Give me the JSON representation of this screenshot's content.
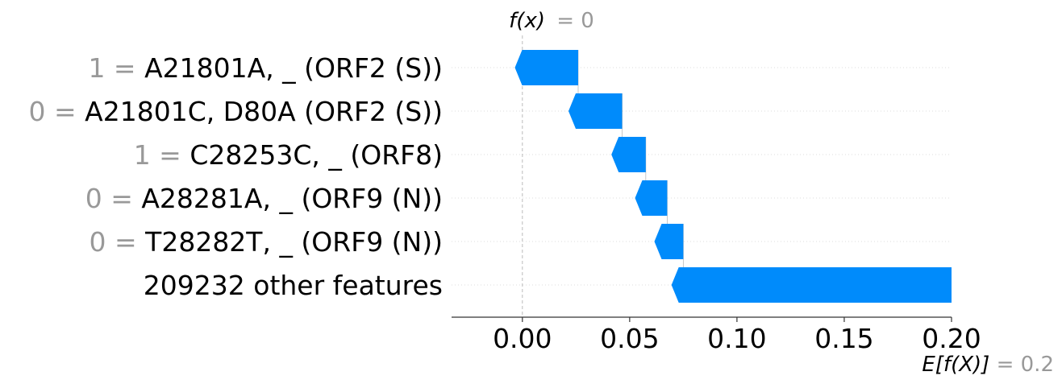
{
  "chart_data": {
    "type": "bar",
    "chart_kind": "waterfall",
    "features": [
      {
        "value": "1",
        "name": "A21801A, _ (ORF2 (S))",
        "start": 0.026,
        "end": -0.0035
      },
      {
        "value": "0",
        "name": "A21801C, D80A (ORF2 (S))",
        "start": 0.0465,
        "end": 0.0215
      },
      {
        "value": "1",
        "name": "C28253C, _ (ORF8)",
        "start": 0.0575,
        "end": 0.0415
      },
      {
        "value": "0",
        "name": "A28281A, _ (ORF9 (N))",
        "start": 0.0675,
        "end": 0.0525
      },
      {
        "value": "0",
        "name": "T28282T, _ (ORF9 (N))",
        "start": 0.075,
        "end": 0.0615
      },
      {
        "value": "",
        "name": "209232 other features",
        "start": 0.2,
        "end": 0.0695
      }
    ],
    "xlim": [
      -0.033,
      0.2
    ],
    "xticks": [
      "0.00",
      "0.05",
      "0.10",
      "0.15",
      "0.20"
    ],
    "xtick_values": [
      0.0,
      0.05,
      0.1,
      0.15,
      0.2
    ],
    "fx": {
      "label": "f(x)",
      "value": "0",
      "x": 0.0
    },
    "base": {
      "label": "E[f(X)]",
      "value": "0.2",
      "x": 0.2
    },
    "colors": {
      "negative": "#008bfb",
      "gridline": "#dddddd",
      "axis": "#333333",
      "muted_text": "#999999",
      "reference_line": "#bbbbbb"
    }
  }
}
